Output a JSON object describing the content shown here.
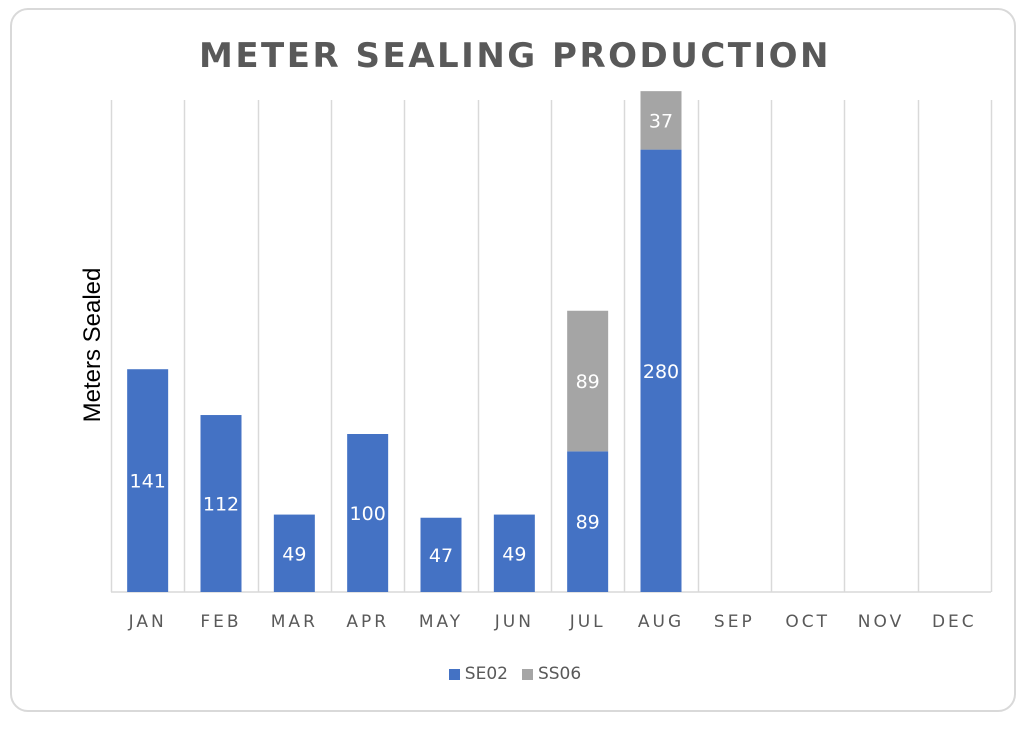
{
  "chart_data": {
    "type": "bar",
    "stacked": true,
    "title": "METER SEALING PRODUCTION",
    "ylabel": "Meters Sealed",
    "xlabel": "",
    "categories": [
      "JAN",
      "FEB",
      "MAR",
      "APR",
      "MAY",
      "JUN",
      "JUL",
      "AUG",
      "SEP",
      "OCT",
      "NOV",
      "DEC"
    ],
    "series": [
      {
        "name": "SE02",
        "color": "#4472c4",
        "values": [
          141,
          112,
          49,
          100,
          47,
          49,
          89,
          280,
          0,
          0,
          0,
          0
        ]
      },
      {
        "name": "SS06",
        "color": "#a5a5a5",
        "values": [
          0,
          0,
          0,
          0,
          0,
          0,
          89,
          37,
          0,
          0,
          0,
          0
        ]
      }
    ],
    "ylim": [
      0,
      350
    ],
    "grid": "vertical",
    "legend": "bottom"
  }
}
